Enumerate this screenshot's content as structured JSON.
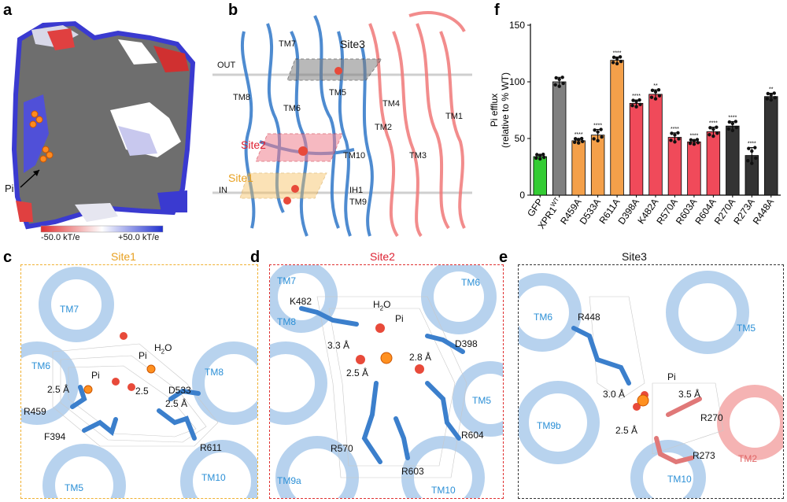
{
  "panels": {
    "a": {
      "letter": "a",
      "pi_label": "Pi",
      "scale_min": "-50.0 kT/e",
      "scale_max": "+50.0 kT/e",
      "scale_colors": [
        "#e03030",
        "#ffffff",
        "#2030d0"
      ]
    },
    "b": {
      "letter": "b",
      "out_label": "OUT",
      "in_label": "IN",
      "site1": "Site1",
      "site2": "Site2",
      "site3": "Site3",
      "tms_blue": [
        "TM7",
        "TM8",
        "TM6",
        "TM5",
        "TM10",
        "IH1",
        "TM9"
      ],
      "tms_red": [
        "TM4",
        "TM2",
        "TM3",
        "TM1"
      ]
    },
    "c": {
      "letter": "c",
      "title": "Site1",
      "border_color": "#f0b030",
      "tms": [
        "TM7",
        "TM6",
        "TM8",
        "TM5",
        "TM10"
      ],
      "residues": [
        "D533",
        "R459",
        "F394",
        "R611"
      ],
      "ligands": [
        "Pi",
        "Pi",
        "H2O"
      ],
      "distances": [
        "2.5 Å",
        "2.5",
        "2.5 Å"
      ]
    },
    "d": {
      "letter": "d",
      "title": "Site2",
      "border_color": "#e03030",
      "tms": [
        "TM7",
        "TM6",
        "TM8",
        "TM5",
        "TM9a",
        "TM10"
      ],
      "residues": [
        "K482",
        "D398",
        "R570",
        "R604",
        "R603"
      ],
      "ligands": [
        "Pi",
        "H2O"
      ],
      "distances": [
        "3.3 Å",
        "2.8 Å",
        "2.5 Å"
      ]
    },
    "e": {
      "letter": "e",
      "title": "Site3",
      "border_color": "#333333",
      "tms": [
        "TM6",
        "TM5",
        "TM9b",
        "TM10",
        "TM2"
      ],
      "residues": [
        "R448",
        "R270",
        "R273"
      ],
      "ligands": [
        "Pi"
      ],
      "distances": [
        "3.0 Å",
        "3.5 Å",
        "2.5 Å"
      ]
    },
    "f": {
      "letter": "f"
    }
  },
  "chart_data": {
    "type": "bar",
    "ylabel_line1": "Pi efflux",
    "ylabel_line2": "(relative to % WT)",
    "ylim": [
      0,
      150
    ],
    "yticks": [
      "0",
      "50",
      "100",
      "150"
    ],
    "categories": [
      "GFP",
      "XPR1WT",
      "R459A",
      "D533A",
      "R611A",
      "D398A",
      "K482A",
      "R570A",
      "R603A",
      "R604A",
      "R270A",
      "R273A",
      "R448A"
    ],
    "category_labels": [
      "GFP",
      "XPR1",
      "R459A",
      "D533A",
      "R611A",
      "D398A",
      "K482A",
      "R570A",
      "R603A",
      "R604A",
      "R270A",
      "R273A",
      "R448A"
    ],
    "category_superscripts": [
      "",
      "WT",
      "",
      "",
      "",
      "",
      "",
      "",
      "",
      "",
      "",
      "",
      ""
    ],
    "values": [
      34,
      100,
      48,
      53,
      119,
      81,
      89,
      51,
      47,
      56,
      61,
      35,
      87
    ],
    "errors": [
      2,
      4,
      2,
      5,
      3,
      3,
      4,
      4,
      2,
      4,
      4,
      7,
      3
    ],
    "significance": [
      "",
      "",
      "****",
      "****",
      "****",
      "****",
      "**",
      "****",
      "****",
      "****",
      "****",
      "****",
      "**"
    ],
    "bar_colors": [
      "#33cc33",
      "#808080",
      "#f4a04a",
      "#f4a04a",
      "#f4a04a",
      "#f04a5a",
      "#f04a5a",
      "#f04a5a",
      "#f04a5a",
      "#f04a5a",
      "#333333",
      "#333333",
      "#333333"
    ],
    "grid": false
  }
}
